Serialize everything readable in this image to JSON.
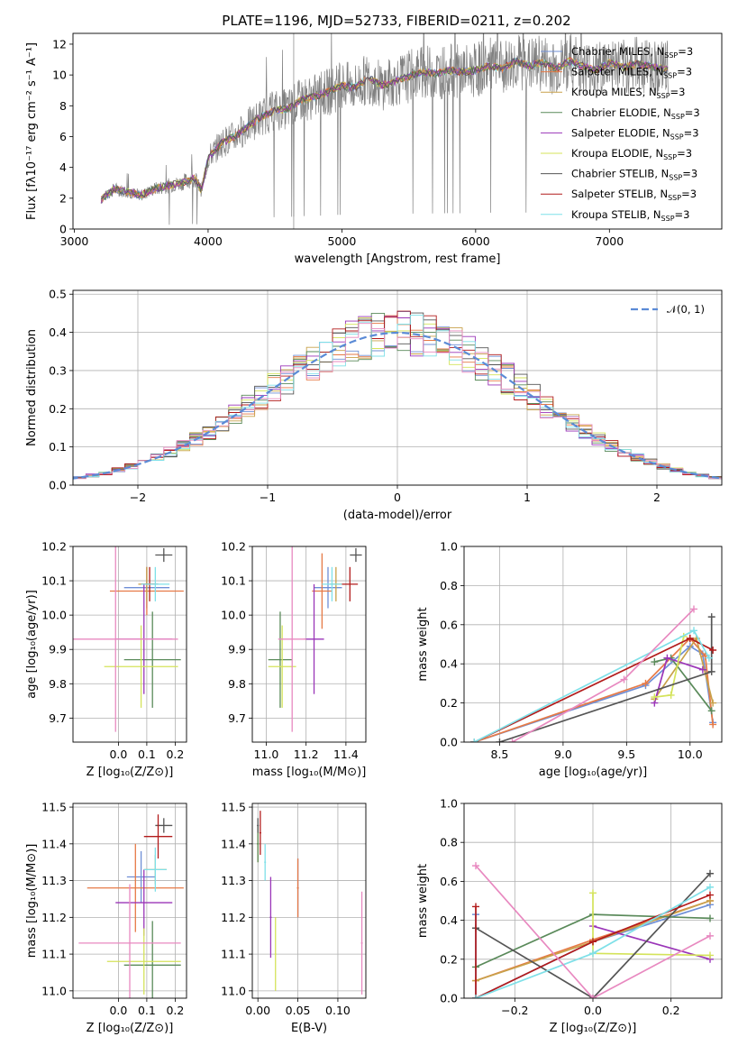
{
  "title": "PLATE=1196, MJD=52733, FIBERID=0211, z=0.202",
  "colors": [
    "#6f8fd6",
    "#e67a46",
    "#c8a14a",
    "#5a8a5a",
    "#9a35b8",
    "#d4e35a",
    "#555555",
    "#b21b1b",
    "#7fe0e8",
    "#e889c0"
  ],
  "chart_data": [
    {
      "id": "spectrum",
      "type": "line",
      "title": "PLATE=1196, MJD=52733, FIBERID=0211, z=0.202",
      "xlabel": "wavelength [Angstrom, rest frame]",
      "ylabel": "Flux [fλ10⁻¹⁷ erg cm⁻² s⁻¹ A⁻¹]",
      "xlim": [
        2990,
        7840
      ],
      "ylim": [
        0,
        12.7
      ],
      "xticks": [
        "3000",
        "4000",
        "5000",
        "6000",
        "7000"
      ],
      "yticks": [
        "0",
        "2",
        "4",
        "6",
        "8",
        "10",
        "12"
      ],
      "legend_position": "right",
      "legend": [
        "Chabrier MILES, N_SSP=3",
        "Salpeter MILES, N_SSP=3",
        "Kroupa MILES, N_SSP=3",
        "Chabrier ELODIE, N_SSP=3",
        "Salpeter ELODIE, N_SSP=3",
        "Kroupa ELODIE, N_SSP=3",
        "Chabrier STELIB, N_SSP=3",
        "Salpeter STELIB, N_SSP=3",
        "Kroupa STELIB, N_SSP=3"
      ],
      "data_x": [
        3200,
        3300,
        3400,
        3500,
        3600,
        3700,
        3800,
        3900,
        3950,
        4000,
        4100,
        4200,
        4300,
        4400,
        4500,
        4600,
        4700,
        4800,
        4900,
        5000,
        5100,
        5200,
        5300,
        5400,
        5500,
        5600,
        5700,
        5800,
        5900,
        6000,
        6100,
        6200,
        6300,
        6400,
        6500,
        6600,
        6700,
        6800,
        6900,
        7000,
        7100,
        7200,
        7300,
        7400
      ],
      "data_y": [
        1.9,
        2.6,
        2.4,
        2.2,
        2.6,
        2.8,
        3.0,
        3.3,
        2.5,
        4.6,
        5.6,
        6.0,
        6.7,
        7.3,
        7.7,
        7.8,
        8.4,
        8.6,
        8.9,
        9.3,
        9.2,
        9.8,
        9.3,
        9.6,
        9.9,
        10.2,
        10.1,
        10.3,
        10.2,
        10.3,
        10.6,
        10.4,
        10.9,
        10.6,
        10.8,
        10.4,
        10.9,
        10.6,
        10.3,
        10.8,
        10.5,
        10.7,
        10.6,
        10.4
      ]
    },
    {
      "id": "residuals",
      "type": "line",
      "xlabel": "(data-model)/error",
      "ylabel": "Normed distribution",
      "xlim": [
        -2.5,
        2.5
      ],
      "ylim": [
        0,
        0.51
      ],
      "xticks": [
        "−2",
        "−1",
        "0",
        "1",
        "2"
      ],
      "yticks": [
        "0.0",
        "0.1",
        "0.2",
        "0.3",
        "0.4",
        "0.5"
      ],
      "legend_position": "top-right",
      "legend": [
        "𝒩(0, 1)"
      ],
      "gaussian": {
        "mean": 0,
        "sigma": 1
      }
    },
    {
      "id": "age-vs-Z",
      "type": "scatter",
      "xlabel": "Z [log₁₀(Z/Z⊙)]",
      "ylabel": "age  [log₁₀(age/yr)]",
      "xlim": [
        -0.16,
        0.24
      ],
      "ylim": [
        9.63,
        10.2
      ],
      "xticks": [
        "0.0",
        "0.1",
        "0.2"
      ],
      "yticks": [
        "9.7",
        "9.8",
        "9.9",
        "10.0",
        "10.1",
        "10.2"
      ],
      "points": [
        {
          "x": 0.1,
          "y": 10.08,
          "xerr": 0.08,
          "yerr": 0.06
        },
        {
          "x": 0.1,
          "y": 10.07,
          "xerr": 0.13,
          "yerr": 0.07
        },
        {
          "x": 0.1,
          "y": 10.09,
          "xerr": 0.03,
          "yerr": 0.05
        },
        {
          "x": 0.12,
          "y": 9.87,
          "xerr": 0.1,
          "yerr": 0.14
        },
        {
          "x": 0.09,
          "y": 9.93,
          "xerr": 0.1,
          "yerr": 0.16
        },
        {
          "x": 0.08,
          "y": 9.85,
          "xerr": 0.13,
          "yerr": 0.12
        },
        {
          "x": 0.16,
          "y": 10.175,
          "xerr": 0.03,
          "yerr": 0.02
        },
        {
          "x": 0.11,
          "y": 10.09,
          "xerr": 0.03,
          "yerr": 0.05
        },
        {
          "x": 0.13,
          "y": 10.09,
          "xerr": 0.05,
          "yerr": 0.05
        },
        {
          "x": -0.01,
          "y": 9.93,
          "xerr": 0.22,
          "yerr": 0.27
        }
      ]
    },
    {
      "id": "age-vs-mass",
      "type": "scatter",
      "xlabel": "mass [log₁₀(M/M⊙)]",
      "xlim": [
        10.93,
        11.5
      ],
      "ylim": [
        9.63,
        10.2
      ],
      "xticks": [
        "11.0",
        "11.2",
        "11.4"
      ],
      "yticks": [
        "9.7",
        "9.8",
        "9.9",
        "10.0",
        "10.1",
        "10.2"
      ],
      "points": [
        {
          "x": 11.31,
          "y": 10.08,
          "xerr": 0.07,
          "yerr": 0.06
        },
        {
          "x": 11.28,
          "y": 10.07,
          "xerr": 0.05,
          "yerr": 0.11
        },
        {
          "x": 11.35,
          "y": 10.09,
          "xerr": 0.03,
          "yerr": 0.05
        },
        {
          "x": 11.07,
          "y": 9.87,
          "xerr": 0.06,
          "yerr": 0.14
        },
        {
          "x": 11.24,
          "y": 9.93,
          "xerr": 0.05,
          "yerr": 0.16
        },
        {
          "x": 11.08,
          "y": 9.85,
          "xerr": 0.07,
          "yerr": 0.12
        },
        {
          "x": 11.45,
          "y": 10.175,
          "xerr": 0.03,
          "yerr": 0.02
        },
        {
          "x": 11.42,
          "y": 10.09,
          "xerr": 0.04,
          "yerr": 0.05
        },
        {
          "x": 11.33,
          "y": 10.09,
          "xerr": 0.05,
          "yerr": 0.05
        },
        {
          "x": 11.13,
          "y": 9.93,
          "xerr": 0.07,
          "yerr": 0.27
        }
      ]
    },
    {
      "id": "weight-vs-age",
      "type": "line",
      "xlabel": "age  [log₁₀(age/yr)]",
      "ylabel": "mass weight",
      "xlim": [
        8.22,
        10.25
      ],
      "ylim": [
        0,
        1.0
      ],
      "xticks": [
        "8.5",
        "9.0",
        "9.5",
        "10.0"
      ],
      "yticks": [
        "0.0",
        "0.2",
        "0.4",
        "0.6",
        "0.8",
        "1.0"
      ],
      "series": [
        {
          "x": [
            8.3,
            9.65,
            10.0,
            10.1,
            10.18
          ],
          "y": [
            0.0,
            0.29,
            0.49,
            0.45,
            0.1
          ]
        },
        {
          "x": [
            8.3,
            9.65,
            10.0,
            10.12,
            10.18
          ],
          "y": [
            0.0,
            0.3,
            0.53,
            0.44,
            0.09
          ]
        },
        {
          "x": [
            9.72,
            10.05,
            10.18
          ],
          "y": [
            0.22,
            0.53,
            0.2
          ]
        },
        {
          "x": [
            9.72,
            9.85,
            10.17
          ],
          "y": [
            0.41,
            0.43,
            0.16
          ]
        },
        {
          "x": [
            9.72,
            9.82,
            10.1
          ],
          "y": [
            0.2,
            0.43,
            0.37
          ]
        },
        {
          "x": [
            9.72,
            9.85,
            9.95
          ],
          "y": [
            0.23,
            0.24,
            0.54
          ]
        },
        {
          "x": [
            8.5,
            10.17,
            10.17
          ],
          "y": [
            0.0,
            0.36,
            0.64
          ]
        },
        {
          "x": [
            8.3,
            10.0,
            10.18
          ],
          "y": [
            0.0,
            0.53,
            0.47
          ]
        },
        {
          "x": [
            8.3,
            10.03,
            10.15
          ],
          "y": [
            0.0,
            0.57,
            0.43
          ]
        },
        {
          "x": [
            8.6,
            9.48,
            10.03
          ],
          "y": [
            0.0,
            0.32,
            0.68
          ]
        }
      ]
    },
    {
      "id": "mass-vs-Z",
      "type": "scatter",
      "xlabel": "Z [log₁₀(Z/Z⊙)]",
      "ylabel": "mass [log₁₀(M/M⊙)]",
      "xlim": [
        -0.16,
        0.24
      ],
      "ylim": [
        10.98,
        11.51
      ],
      "xticks": [
        "0.0",
        "0.1",
        "0.2"
      ],
      "yticks": [
        "11.0",
        "11.1",
        "11.2",
        "11.3",
        "11.4",
        "11.5"
      ],
      "points": [
        {
          "x": 0.08,
          "y": 11.31,
          "xerr": 0.05,
          "yerr": 0.07
        },
        {
          "x": 0.06,
          "y": 11.28,
          "xerr": 0.17,
          "yerr": 0.12
        },
        {
          "x": 0.13,
          "y": 11.33,
          "xerr": 0.04,
          "yerr": 0.04
        },
        {
          "x": 0.12,
          "y": 11.07,
          "xerr": 0.1,
          "yerr": 0.12
        },
        {
          "x": 0.09,
          "y": 11.24,
          "xerr": 0.1,
          "yerr": 0.09
        },
        {
          "x": 0.09,
          "y": 11.08,
          "xerr": 0.13,
          "yerr": 0.09
        },
        {
          "x": 0.16,
          "y": 11.45,
          "xerr": 0.03,
          "yerr": 0.02
        },
        {
          "x": 0.14,
          "y": 11.42,
          "xerr": 0.05,
          "yerr": 0.06
        },
        {
          "x": 0.13,
          "y": 11.33,
          "xerr": 0.04,
          "yerr": 0.06
        },
        {
          "x": 0.04,
          "y": 11.13,
          "xerr": 0.18,
          "yerr": 0.16
        }
      ]
    },
    {
      "id": "mass-vs-ebv",
      "type": "scatter",
      "xlabel": "E(B-V)",
      "xlim": [
        -0.007,
        0.135
      ],
      "ylim": [
        10.98,
        11.51
      ],
      "xticks": [
        "0.00",
        "0.05",
        "0.10"
      ],
      "yticks": [
        "11.0",
        "11.1",
        "11.2",
        "11.3",
        "11.4",
        "11.5"
      ],
      "points": [
        {
          "x": 0.05,
          "y": 11.28,
          "yerr": 0.08
        },
        {
          "x": 0.05,
          "y": 11.28,
          "yerr": 0.08
        },
        {
          "x": 0.0,
          "y": 11.4,
          "yerr": 0.05
        },
        {
          "x": 0.0,
          "y": 11.4,
          "yerr": 0.05
        },
        {
          "x": 0.016,
          "y": 11.2,
          "yerr": 0.11
        },
        {
          "x": 0.022,
          "y": 11.1,
          "yerr": 0.1
        },
        {
          "x": 0.0,
          "y": 11.45,
          "yerr": 0.02
        },
        {
          "x": 0.003,
          "y": 11.43,
          "yerr": 0.06
        },
        {
          "x": 0.009,
          "y": 11.35,
          "yerr": 0.05
        },
        {
          "x": 0.13,
          "y": 11.13,
          "yerr": 0.14
        }
      ]
    },
    {
      "id": "weight-vs-Z",
      "type": "line",
      "xlabel": "Z [log₁₀(Z/Z⊙)]",
      "ylabel": "mass weight",
      "xlim": [
        -0.33,
        0.33
      ],
      "ylim": [
        0,
        1.0
      ],
      "xticks": [
        "−0.2",
        "0.0",
        "0.2"
      ],
      "yticks": [
        "0.0",
        "0.2",
        "0.4",
        "0.6",
        "0.8",
        "1.0"
      ],
      "series": [
        {
          "x": [
            -0.3,
            -0.3,
            0.0,
            0.3
          ],
          "y": [
            0.43,
            0.0,
            0.29,
            0.48
          ]
        },
        {
          "x": [
            -0.3,
            0.0,
            0.3
          ],
          "y": [
            0.09,
            0.3,
            0.5
          ]
        },
        {
          "x": [
            -0.3,
            0.0,
            0.3
          ],
          "y": [
            0.09,
            0.29,
            0.5
          ]
        },
        {
          "x": [
            -0.3,
            0.0,
            0.3
          ],
          "y": [
            0.16,
            0.43,
            0.41
          ]
        },
        {
          "x": [
            0.0,
            0.3
          ],
          "y": [
            0.37,
            0.2
          ]
        },
        {
          "x": [
            0.0,
            0.0,
            0.3
          ],
          "y": [
            0.54,
            0.23,
            0.22
          ]
        },
        {
          "x": [
            -0.3,
            0.0,
            0.3
          ],
          "y": [
            0.36,
            0.0,
            0.64
          ]
        },
        {
          "x": [
            -0.3,
            -0.3,
            0.0,
            0.3
          ],
          "y": [
            0.47,
            0.0,
            0.29,
            0.53
          ]
        },
        {
          "x": [
            -0.3,
            0.0,
            0.3
          ],
          "y": [
            0.0,
            0.23,
            0.57
          ]
        },
        {
          "x": [
            -0.3,
            0.0,
            0.3
          ],
          "y": [
            0.68,
            0.0,
            0.32
          ]
        }
      ]
    }
  ]
}
